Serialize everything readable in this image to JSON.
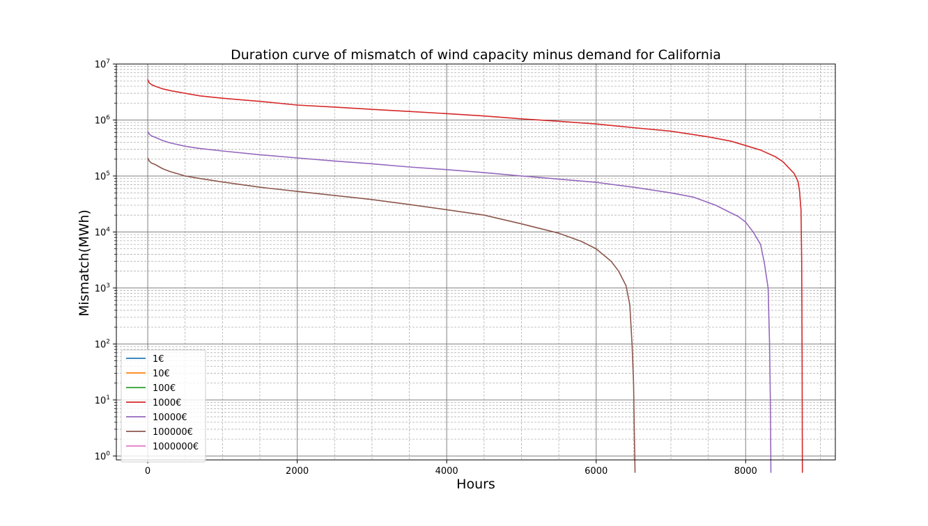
{
  "chart_data": {
    "type": "line",
    "title": "Duration curve of mismatch of wind capacity minus demand for California",
    "xlabel": "Hours",
    "ylabel": "Mismatch(MWh)",
    "xlim": [
      -420,
      9200
    ],
    "ylim": [
      0.85,
      10000000
    ],
    "yscale": "log",
    "grid": "major and minor",
    "legend_position": "lower-left",
    "x_ticks": [
      0,
      2000,
      4000,
      6000,
      8000
    ],
    "y_ticks": [
      {
        "value": 1,
        "base": "10",
        "exp": "0"
      },
      {
        "value": 10,
        "base": "10",
        "exp": "1"
      },
      {
        "value": 100,
        "base": "10",
        "exp": "2"
      },
      {
        "value": 1000,
        "base": "10",
        "exp": "3"
      },
      {
        "value": 10000,
        "base": "10",
        "exp": "4"
      },
      {
        "value": 100000,
        "base": "10",
        "exp": "5"
      },
      {
        "value": 1000000,
        "base": "10",
        "exp": "6"
      },
      {
        "value": 10000000,
        "base": "10",
        "exp": "7"
      }
    ],
    "series": [
      {
        "name": "1€",
        "color": "#1f77b4",
        "x": [],
        "y": []
      },
      {
        "name": "10€",
        "color": "#ff7f0e",
        "x": [],
        "y": []
      },
      {
        "name": "100€",
        "color": "#2ca02c",
        "x": [],
        "y": []
      },
      {
        "name": "1000€",
        "color": "#d62728",
        "x": [
          0,
          20,
          50,
          100,
          200,
          300,
          500,
          700,
          1000,
          1500,
          2000,
          2500,
          3000,
          3500,
          4000,
          4500,
          5000,
          5500,
          6000,
          6500,
          7000,
          7500,
          7800,
          8000,
          8200,
          8400,
          8500,
          8600,
          8650,
          8700,
          8720,
          8740,
          8750,
          8755,
          8759
        ],
        "y": [
          5300000,
          4600000,
          4300000,
          4000000,
          3600000,
          3350000,
          3000000,
          2700000,
          2450000,
          2150000,
          1850000,
          1700000,
          1550000,
          1420000,
          1300000,
          1180000,
          1050000,
          950000,
          850000,
          730000,
          630000,
          500000,
          420000,
          350000,
          290000,
          220000,
          180000,
          130000,
          110000,
          80000,
          55000,
          25000,
          3000,
          50,
          0.5
        ]
      },
      {
        "name": "10000€",
        "color": "#9467bd",
        "x": [
          0,
          20,
          50,
          100,
          200,
          300,
          500,
          700,
          1000,
          1500,
          2000,
          2500,
          3000,
          3500,
          4000,
          4500,
          5000,
          5500,
          6000,
          6500,
          7000,
          7300,
          7600,
          7800,
          7900,
          8000,
          8100,
          8200,
          8250,
          8300,
          8320,
          8330,
          8335,
          8338
        ],
        "y": [
          620000,
          560000,
          520000,
          490000,
          430000,
          390000,
          340000,
          310000,
          280000,
          240000,
          210000,
          185000,
          165000,
          145000,
          130000,
          115000,
          100000,
          88000,
          77000,
          63000,
          50000,
          42000,
          30000,
          22000,
          19000,
          15000,
          10000,
          6000,
          2800,
          1000,
          100,
          10,
          2,
          0.5
        ]
      },
      {
        "name": "100000€",
        "color": "#8c564b",
        "x": [
          0,
          20,
          50,
          100,
          200,
          300,
          500,
          700,
          1000,
          1500,
          2000,
          2500,
          3000,
          3500,
          4000,
          4500,
          5000,
          5500,
          5800,
          6000,
          6200,
          6300,
          6400,
          6450,
          6480,
          6500,
          6510,
          6515,
          6520
        ],
        "y": [
          210000,
          185000,
          170000,
          160000,
          135000,
          120000,
          100000,
          90000,
          78000,
          63000,
          53000,
          45000,
          38000,
          31000,
          25000,
          20000,
          14000,
          9500,
          6800,
          5000,
          3000,
          2000,
          1100,
          500,
          100,
          20,
          3,
          1.2,
          0.5
        ]
      },
      {
        "name": "1000000€",
        "color": "#e377c2",
        "x": [],
        "y": []
      }
    ]
  }
}
